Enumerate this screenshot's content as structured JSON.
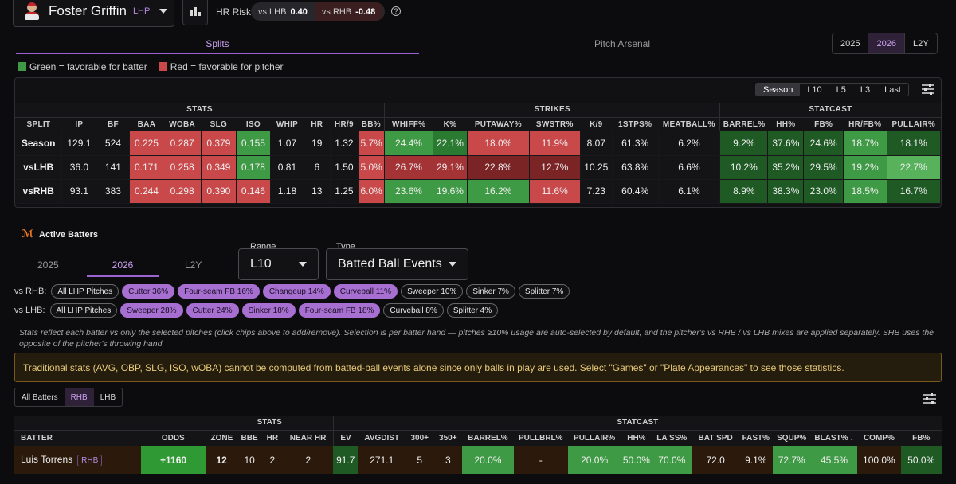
{
  "header": {
    "player_name": "Foster Griffin",
    "player_hand": "LHP",
    "hr_risk_label": "HR Risk",
    "vs_lhb_label": "vs LHB",
    "vs_lhb_value": "0.40",
    "vs_rhb_label": "vs RHB",
    "vs_rhb_value": "-0.48",
    "help": "?"
  },
  "tabs": {
    "splits": "Splits",
    "arsenal": "Pitch Arsenal"
  },
  "years": [
    {
      "label": "2025",
      "active": false
    },
    {
      "label": "2026",
      "active": true
    },
    {
      "label": "L2Y",
      "active": false
    }
  ],
  "legend": {
    "green": "Green = favorable for batter",
    "red": "Red = favorable for pitcher"
  },
  "colors": {
    "accent": "#9b63cf",
    "green": "#3f9a45",
    "red": "#c9484a"
  },
  "periods": [
    {
      "label": "Season",
      "active": true
    },
    {
      "label": "L10",
      "active": false
    },
    {
      "label": "L5",
      "active": false
    },
    {
      "label": "L3",
      "active": false
    },
    {
      "label": "Last",
      "active": false
    }
  ],
  "splits": {
    "groups": {
      "stats": "STATS",
      "strikes": "STRIKES",
      "statcast": "STATCAST"
    },
    "columns": [
      "SPLIT",
      "IP",
      "BF",
      "BAA",
      "WOBA",
      "SLG",
      "ISO",
      "WHIP",
      "HR",
      "HR/9",
      "BB%",
      "WHIFF%",
      "K%",
      "PUTAWAY%",
      "SWSTR%",
      "K/9",
      "1STPS%",
      "MEATBALL%",
      "BARREL%",
      "HH%",
      "FB%",
      "HR/FB%",
      "PULLAIR%"
    ],
    "rows": [
      {
        "cells": [
          "Season",
          "129.1",
          "524",
          "0.225",
          "0.287",
          "0.379",
          "0.155",
          "1.07",
          "19",
          "1.32",
          "5.7%",
          "24.4%",
          "22.1%",
          "18.0%",
          "11.9%",
          "8.07",
          "61.3%",
          "6.2%",
          "9.2%",
          "37.6%",
          "24.6%",
          "18.7%",
          "18.1%"
        ]
      },
      {
        "cells": [
          "vsLHB",
          "36.0",
          "141",
          "0.171",
          "0.258",
          "0.349",
          "0.178",
          "0.81",
          "6",
          "1.50",
          "5.0%",
          "26.7%",
          "29.1%",
          "22.8%",
          "12.7%",
          "10.25",
          "63.8%",
          "6.6%",
          "10.2%",
          "35.2%",
          "29.5%",
          "19.2%",
          "22.7%"
        ]
      },
      {
        "cells": [
          "vsRHB",
          "93.1",
          "383",
          "0.244",
          "0.298",
          "0.390",
          "0.146",
          "1.18",
          "13",
          "1.25",
          "6.0%",
          "23.6%",
          "19.6%",
          "16.2%",
          "11.6%",
          "7.23",
          "60.4%",
          "6.1%",
          "8.9%",
          "38.3%",
          "23.0%",
          "18.5%",
          "16.7%"
        ]
      }
    ]
  },
  "active_batters": {
    "title": "Active Batters",
    "years": [
      {
        "label": "2025",
        "active": false
      },
      {
        "label": "2026",
        "active": true
      },
      {
        "label": "L2Y",
        "active": false
      }
    ],
    "range_label": "Range",
    "range_value": "L10",
    "type_label": "Type",
    "type_value": "Batted Ball Events",
    "vs_rhb_label": "vs RHB:",
    "vs_rhb_chips": [
      {
        "label": "All LHP Pitches",
        "selected": false
      },
      {
        "label": "Cutter 36%",
        "selected": true
      },
      {
        "label": "Four-seam FB 16%",
        "selected": true
      },
      {
        "label": "Changeup 14%",
        "selected": true
      },
      {
        "label": "Curveball 11%",
        "selected": true
      },
      {
        "label": "Sweeper 10%",
        "selected": false
      },
      {
        "label": "Sinker 7%",
        "selected": false
      },
      {
        "label": "Splitter 7%",
        "selected": false
      }
    ],
    "vs_lhb_label": "vs LHB:",
    "vs_lhb_chips": [
      {
        "label": "All LHP Pitches",
        "selected": false
      },
      {
        "label": "Sweeper 28%",
        "selected": true
      },
      {
        "label": "Cutter 24%",
        "selected": true
      },
      {
        "label": "Sinker 18%",
        "selected": true
      },
      {
        "label": "Four-seam FB 18%",
        "selected": true
      },
      {
        "label": "Curveball 8%",
        "selected": false
      },
      {
        "label": "Splitter 4%",
        "selected": false
      }
    ],
    "note": "Stats reflect each batter vs only the selected pitches (click chips above to add/remove). Selection is per batter hand — pitches ≥10% usage are auto-selected by default, and the pitcher's vs RHB / vs LHB mixes are applied separately. SHB uses the opposite of the pitcher's throwing hand.",
    "warning": "Traditional stats (AVG, OBP, SLG, ISO, wOBA) cannot be computed from batted-ball events alone since only balls in play are used. Select \"Games\" or \"Plate Appearances\" to see those statistics.",
    "hand_filters": [
      {
        "label": "All Batters",
        "active": false
      },
      {
        "label": "RHB",
        "active": true
      },
      {
        "label": "LHB",
        "active": false
      }
    ]
  },
  "batters": {
    "groups": {
      "stats": "STATS",
      "statcast": "STATCAST"
    },
    "columns": [
      "BATTER",
      "ODDS",
      "ZONE",
      "BBE",
      "HR",
      "NEAR HR",
      "EV",
      "AVGDIST",
      "300+",
      "350+",
      "BARREL%",
      "PULLBRL%",
      "PULLAIR%",
      "HH%",
      "LA SS%",
      "BAT SPD",
      "FAST%",
      "SQUP%",
      "BLAST%",
      "COMP%",
      "FB%"
    ],
    "sort_indicator": "↓",
    "rows": [
      {
        "name": "Luis Torrens",
        "hand": "RHB",
        "cells": [
          "+1160",
          "12",
          "10",
          "2",
          "2",
          "91.7",
          "271.1",
          "5",
          "3",
          "20.0%",
          "-",
          "20.0%",
          "50.0%",
          "70.0%",
          "72.0",
          "9.1%",
          "72.7%",
          "45.5%",
          "100.0%",
          "50.0%"
        ]
      }
    ]
  }
}
